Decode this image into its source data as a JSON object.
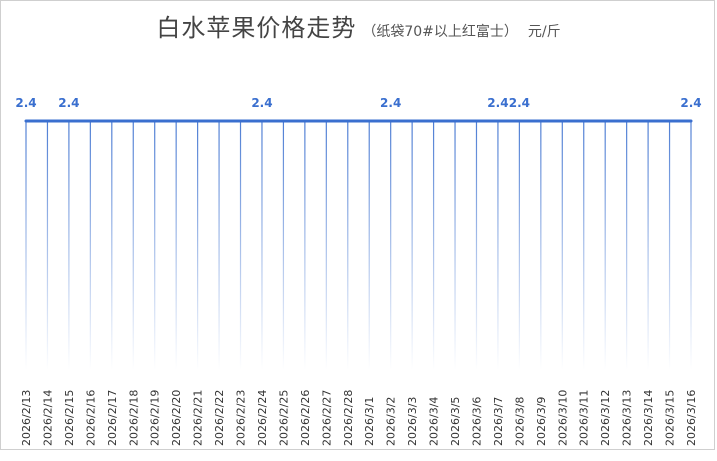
{
  "chart_data": {
    "type": "area",
    "title": "白水苹果价格走势",
    "subtitle": "（纸袋70#以上红富士）",
    "unit": "元/斤",
    "categories": [
      "2026/2/13",
      "2026/2/14",
      "2026/2/15",
      "2026/2/16",
      "2026/2/17",
      "2026/2/18",
      "2026/2/19",
      "2026/2/20",
      "2026/2/21",
      "2026/2/22",
      "2026/2/23",
      "2026/2/24",
      "2026/2/25",
      "2026/2/26",
      "2026/2/27",
      "2026/2/28",
      "2026/3/1",
      "2026/3/2",
      "2026/3/3",
      "2026/3/4",
      "2026/3/5",
      "2026/3/6",
      "2026/3/7",
      "2026/3/8",
      "2026/3/9",
      "2026/3/10",
      "2026/3/11",
      "2026/3/12",
      "2026/3/13",
      "2026/3/14",
      "2026/3/15",
      "2026/3/16"
    ],
    "values": [
      2.4,
      2.4,
      2.4,
      2.4,
      2.4,
      2.4,
      2.4,
      2.4,
      2.4,
      2.4,
      2.4,
      2.4,
      2.4,
      2.4,
      2.4,
      2.4,
      2.4,
      2.4,
      2.4,
      2.4,
      2.4,
      2.4,
      2.4,
      2.4,
      2.4,
      2.4,
      2.4,
      2.4,
      2.4,
      2.4,
      2.4,
      2.4
    ],
    "data_labels": [
      "2.4",
      "",
      "2.4",
      "",
      "",
      "",
      "",
      "",
      "",
      "",
      "",
      "2.4",
      "",
      "",
      "",
      "",
      "",
      "2.4",
      "",
      "",
      "",
      "",
      "2.4",
      "2.4",
      "",
      "",
      "",
      "",
      "",
      "",
      "",
      "2.4"
    ],
    "ylim": [
      0,
      2.4
    ],
    "grid": false,
    "legend": "none",
    "colors": {
      "line": "#3a6fcf",
      "fill_top": "#c7d8f4",
      "fill_bottom": "#ffffff",
      "text": "#333333"
    }
  }
}
